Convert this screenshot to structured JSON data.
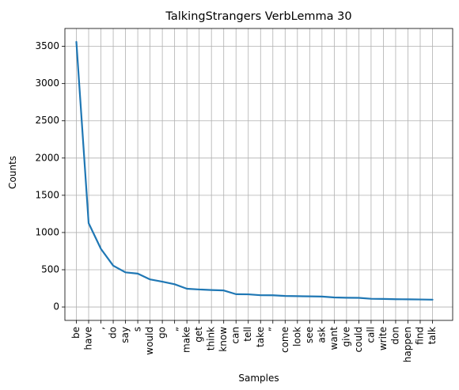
{
  "chart_data": {
    "type": "line",
    "title": "TalkingStrangers VerbLemma 30",
    "xlabel": "Samples",
    "ylabel": "Counts",
    "categories": [
      "be",
      "have",
      ",",
      "do",
      "say",
      "s",
      "would",
      "go",
      "„",
      "make",
      "get",
      "think",
      "know",
      "can",
      "tell",
      "take",
      "”",
      "come",
      "look",
      "see",
      "ask",
      "want",
      "give",
      "could",
      "call",
      "write",
      "don",
      "happen",
      "find",
      "talk"
    ],
    "values": [
      3560,
      1125,
      780,
      555,
      465,
      448,
      370,
      340,
      305,
      245,
      235,
      228,
      222,
      172,
      170,
      158,
      157,
      148,
      145,
      143,
      140,
      128,
      124,
      123,
      110,
      108,
      104,
      103,
      101,
      98
    ],
    "yticks": [
      0,
      500,
      1000,
      1500,
      2000,
      2500,
      3000,
      3500
    ],
    "ylim": [
      -180,
      3740
    ],
    "grid": true,
    "line_color": "#1f77b4",
    "grid_color": "#b0b0b0"
  }
}
